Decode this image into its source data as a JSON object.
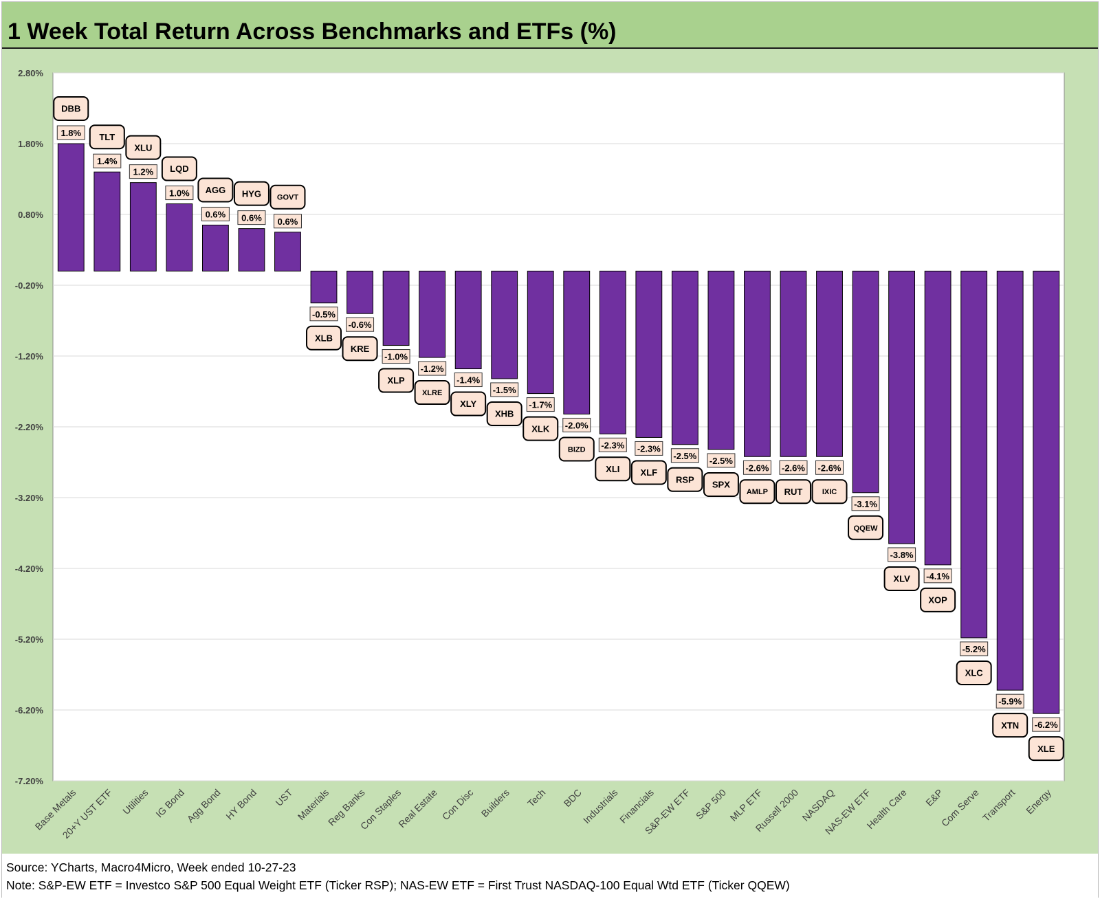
{
  "chart_data": {
    "type": "bar",
    "title": "1 Week Total Return Across Benchmarks and ETFs (%)",
    "categories": [
      "Base Metals",
      "20+Y UST ETF",
      "Utilities",
      "IG Bond",
      "Agg Bond",
      "HY Bond",
      "UST",
      "Materials",
      "Reg Banks",
      "Con Staples",
      "Real Estate",
      "Con Disc",
      "Builders",
      "Tech",
      "BDC",
      "Industrials",
      "Financials",
      "S&P-EW ETF",
      "S&P 500",
      "MLP ETF",
      "Russell 2000",
      "NASDAQ",
      "NAS-EW ETF",
      "Health Care",
      "E&P",
      "Com Serve",
      "Transport",
      "Energy"
    ],
    "values": [
      1.8,
      1.4,
      1.25,
      0.95,
      0.65,
      0.6,
      0.55,
      -0.45,
      -0.6,
      -1.05,
      -1.22,
      -1.38,
      -1.52,
      -1.73,
      -2.02,
      -2.3,
      -2.35,
      -2.45,
      -2.52,
      -2.62,
      -2.62,
      -2.62,
      -3.13,
      -3.85,
      -4.15,
      -5.18,
      -5.92,
      -6.25
    ],
    "value_labels": [
      "1.8%",
      "1.4%",
      "1.2%",
      "1.0%",
      "0.6%",
      "0.6%",
      "0.6%",
      "-0.5%",
      "-0.6%",
      "-1.0%",
      "-1.2%",
      "-1.4%",
      "-1.5%",
      "-1.7%",
      "-2.0%",
      "-2.3%",
      "-2.3%",
      "-2.5%",
      "-2.5%",
      "-2.6%",
      "-2.6%",
      "-2.6%",
      "-3.1%",
      "-3.8%",
      "-4.1%",
      "-5.2%",
      "-5.9%",
      "-6.2%"
    ],
    "tickers": [
      "DBB",
      "TLT",
      "XLU",
      "LQD",
      "AGG",
      "HYG",
      "GOVT",
      "XLB",
      "KRE",
      "XLP",
      "XLRE",
      "XLY",
      "XHB",
      "XLK",
      "BIZD",
      "XLI",
      "XLF",
      "RSP",
      "SPX",
      "AMLP",
      "RUT",
      "IXIC",
      "QQEW",
      "XLV",
      "XOP",
      "XLC",
      "XTN",
      "XLE"
    ],
    "ylim": [
      -7.2,
      2.8
    ],
    "yticks": [
      2.8,
      1.8,
      0.8,
      -0.2,
      -1.2,
      -2.2,
      -3.2,
      -4.2,
      -5.2,
      -6.2,
      -7.2
    ],
    "ytick_labels": [
      "2.80%",
      "1.80%",
      "0.80%",
      "-0.20%",
      "-1.20%",
      "-2.20%",
      "-3.20%",
      "-4.20%",
      "-5.20%",
      "-6.20%",
      "-7.20%"
    ],
    "grid": true,
    "legend": "none",
    "bar_color": "#7030a0",
    "label_fill": "#fce4d6"
  },
  "footer": {
    "source": "Source: YCharts, Macro4Micro, Week ended 10-27-23",
    "note": "Note: S&P-EW ETF = Investco S&P 500 Equal Weight ETF (Ticker RSP); NAS-EW ETF = First Trust NASDAQ-100 Equal Wtd ETF (Ticker QQEW)"
  }
}
